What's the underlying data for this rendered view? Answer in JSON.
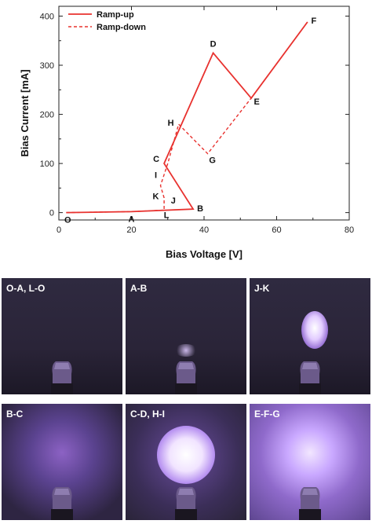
{
  "chart_data": {
    "type": "line",
    "xlabel": "Bias Voltage [V]",
    "ylabel": "Bias Current [mA]",
    "xlim": [
      0,
      80
    ],
    "ylim": [
      -15,
      420
    ],
    "x_ticks": [
      "0",
      "20",
      "40",
      "60",
      "80"
    ],
    "y_ticks": [
      "0",
      "100",
      "200",
      "300",
      "400"
    ],
    "grid": false,
    "legend_position": "top-left",
    "series": [
      {
        "name": "Ramp-up",
        "style": "solid",
        "color": "#e8322f",
        "points": [
          [
            2,
            0
          ],
          [
            20,
            2
          ],
          [
            37,
            7
          ],
          [
            29,
            100
          ],
          [
            42.5,
            325
          ],
          [
            53,
            233
          ],
          [
            68.5,
            388
          ]
        ]
      },
      {
        "name": "Ramp-down",
        "style": "dashed",
        "color": "#e8322f",
        "points": [
          [
            68.5,
            388
          ],
          [
            53,
            233
          ],
          [
            41,
            120
          ],
          [
            33,
            180
          ],
          [
            30,
            100
          ],
          [
            28,
            55
          ],
          [
            29,
            30
          ],
          [
            29,
            5
          ],
          [
            20,
            2
          ],
          [
            2,
            0
          ]
        ]
      }
    ],
    "annotations": [
      {
        "text": "O",
        "x": 2,
        "y": 0
      },
      {
        "text": "A",
        "x": 20,
        "y": 2
      },
      {
        "text": "B",
        "x": 37,
        "y": 7
      },
      {
        "text": "C",
        "x": 29,
        "y": 100
      },
      {
        "text": "D",
        "x": 42.5,
        "y": 325
      },
      {
        "text": "E",
        "x": 53,
        "y": 233
      },
      {
        "text": "F",
        "x": 68.5,
        "y": 388
      },
      {
        "text": "G",
        "x": 41,
        "y": 120
      },
      {
        "text": "H",
        "x": 33,
        "y": 180
      },
      {
        "text": "I",
        "x": 28,
        "y": 75
      },
      {
        "text": "J",
        "x": 30,
        "y": 30
      },
      {
        "text": "K",
        "x": 28,
        "y": 32
      },
      {
        "text": "L",
        "x": 29,
        "y": 5
      }
    ]
  },
  "photos": [
    {
      "label": "O-A, L-O",
      "glow": "none"
    },
    {
      "label": "A-B",
      "glow": "faint"
    },
    {
      "label": "J-K",
      "glow": "small-plume"
    },
    {
      "label": "B-C",
      "glow": "diffuse"
    },
    {
      "label": "C-D, H-I",
      "glow": "bright-sphere"
    },
    {
      "label": "E-F-G",
      "glow": "large-bright"
    }
  ],
  "colors": {
    "curve": "#e8322f",
    "photo_bg": "#2a2438",
    "plasma": "#c9a8ff",
    "electrode": "#6b5a8a"
  }
}
